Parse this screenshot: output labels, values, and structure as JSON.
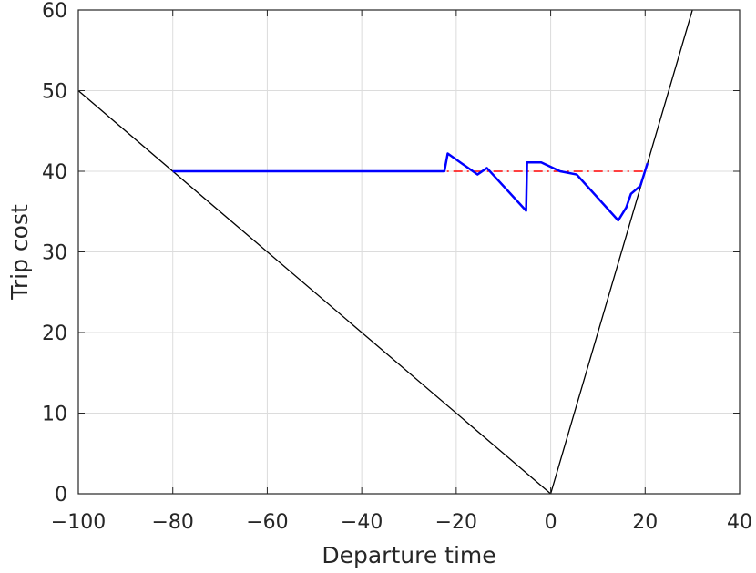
{
  "chart_data": {
    "type": "line",
    "xlabel": "Departure time",
    "ylabel": "Trip cost",
    "xlim": [
      -100,
      40
    ],
    "ylim": [
      0,
      60
    ],
    "xticks": [
      -100,
      -80,
      -60,
      -40,
      -20,
      0,
      20,
      40
    ],
    "yticks": [
      0,
      10,
      20,
      30,
      40,
      50,
      60
    ],
    "grid": true,
    "series": [
      {
        "color": "#000000",
        "style": "solid",
        "x": [
          -100,
          0,
          30.5
        ],
        "y": [
          50,
          0,
          61
        ]
      },
      {
        "color": "#ff0000",
        "style": "dashdot",
        "x": [
          -80,
          20.5
        ],
        "y": [
          40,
          40
        ]
      },
      {
        "color": "#0000ff",
        "style": "solid",
        "x": [
          -80,
          -22.5,
          -21.8,
          -15.5,
          -13.5,
          -5.2,
          -5.0,
          -2.0,
          2.0,
          5.5,
          14.3,
          16.0,
          17.0,
          19.0,
          20.5
        ],
        "y": [
          40,
          40,
          42.2,
          39.6,
          40.4,
          35.1,
          41.1,
          41.1,
          40.0,
          39.6,
          33.9,
          35.5,
          37.2,
          38.2,
          41.0
        ]
      }
    ]
  }
}
